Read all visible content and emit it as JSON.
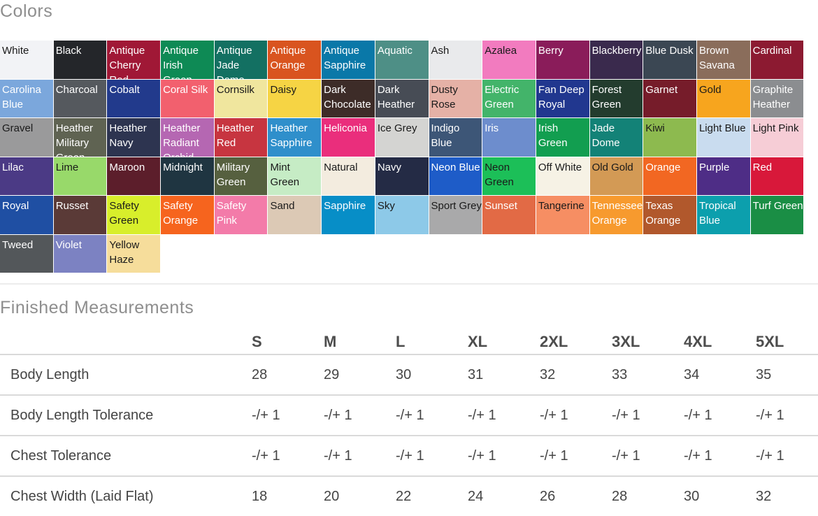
{
  "colors_section": {
    "title": "Colors",
    "swatches": [
      {
        "name": "White",
        "color": "#f2f3f6",
        "text": "#1a1a1a"
      },
      {
        "name": "Black",
        "color": "#24262a",
        "text": "#ffffff"
      },
      {
        "name": "Antique Cherry Red",
        "color": "#a01836",
        "text": "#ffffff"
      },
      {
        "name": "Antique Irish Green",
        "color": "#0e8a55",
        "text": "#ffffff"
      },
      {
        "name": "Antique Jade Dome",
        "color": "#137062",
        "text": "#ffffff"
      },
      {
        "name": "Antique Orange",
        "color": "#d9541f",
        "text": "#ffffff"
      },
      {
        "name": "Antique Sapphire",
        "color": "#0a78a8",
        "text": "#ffffff"
      },
      {
        "name": "Aquatic",
        "color": "#4e8f86",
        "text": "#ffffff"
      },
      {
        "name": "Ash",
        "color": "#e9eaec",
        "text": "#1a1a1a"
      },
      {
        "name": "Azalea",
        "color": "#f27bbf",
        "text": "#1a1a1a"
      },
      {
        "name": "Berry",
        "color": "#8a1c5a",
        "text": "#ffffff"
      },
      {
        "name": "Blackberry",
        "color": "#3a2a4d",
        "text": "#ffffff"
      },
      {
        "name": "Blue Dusk",
        "color": "#3b4753",
        "text": "#ffffff"
      },
      {
        "name": "Brown Savana",
        "color": "#8a6d5b",
        "text": "#ffffff"
      },
      {
        "name": "Cardinal",
        "color": "#8c1a31",
        "text": "#ffffff"
      },
      {
        "name": "Carolina Blue",
        "color": "#7ba7dc",
        "text": "#ffffff"
      },
      {
        "name": "Charcoal",
        "color": "#55595e",
        "text": "#ffffff"
      },
      {
        "name": "Cobalt",
        "color": "#223a8c",
        "text": "#ffffff"
      },
      {
        "name": "Coral Silk",
        "color": "#f2606e",
        "text": "#ffffff"
      },
      {
        "name": "Cornsilk",
        "color": "#f0e69e",
        "text": "#1a1a1a"
      },
      {
        "name": "Daisy",
        "color": "#f6d444",
        "text": "#1a1a1a"
      },
      {
        "name": "Dark Chocolate",
        "color": "#3d2c28",
        "text": "#ffffff"
      },
      {
        "name": "Dark Heather",
        "color": "#474c55",
        "text": "#ffffff"
      },
      {
        "name": "Dusty Rose",
        "color": "#e5b1a6",
        "text": "#1a1a1a"
      },
      {
        "name": "Electric Green",
        "color": "#43b46a",
        "text": "#ffffff"
      },
      {
        "name": "Fan Deep Royal",
        "color": "#21378f",
        "text": "#ffffff"
      },
      {
        "name": "Forest Green",
        "color": "#233c2e",
        "text": "#ffffff"
      },
      {
        "name": "Garnet",
        "color": "#761c2a",
        "text": "#ffffff"
      },
      {
        "name": "Gold",
        "color": "#f7a51e",
        "text": "#1a1a1a"
      },
      {
        "name": "Graphite Heather",
        "color": "#8b8d90",
        "text": "#ffffff"
      },
      {
        "name": "Gravel",
        "color": "#9a9a9b",
        "text": "#1a1a1a"
      },
      {
        "name": "Heather Military Green",
        "color": "#5f6352",
        "text": "#ffffff"
      },
      {
        "name": "Heather Navy",
        "color": "#2d3450",
        "text": "#ffffff"
      },
      {
        "name": "Heather Radiant Orchid",
        "color": "#b567b2",
        "text": "#ffffff"
      },
      {
        "name": "Heather Red",
        "color": "#c73540",
        "text": "#ffffff"
      },
      {
        "name": "Heather Sapphire",
        "color": "#2f8fcb",
        "text": "#ffffff"
      },
      {
        "name": "Heliconia",
        "color": "#ea2e7c",
        "text": "#ffffff"
      },
      {
        "name": "Ice Grey",
        "color": "#d4d4d2",
        "text": "#1a1a1a"
      },
      {
        "name": "Indigo Blue",
        "color": "#3d5677",
        "text": "#ffffff"
      },
      {
        "name": "Iris",
        "color": "#6d8dcd",
        "text": "#ffffff"
      },
      {
        "name": "Irish Green",
        "color": "#129e50",
        "text": "#ffffff"
      },
      {
        "name": "Jade Dome",
        "color": "#138277",
        "text": "#ffffff"
      },
      {
        "name": "Kiwi",
        "color": "#8dba4f",
        "text": "#1a1a1a"
      },
      {
        "name": "Light Blue",
        "color": "#c9dcef",
        "text": "#1a1a1a"
      },
      {
        "name": "Light Pink",
        "color": "#f6cdd6",
        "text": "#1a1a1a"
      },
      {
        "name": "Lilac",
        "color": "#4b3a85",
        "text": "#ffffff"
      },
      {
        "name": "Lime",
        "color": "#98d96a",
        "text": "#1a1a1a"
      },
      {
        "name": "Maroon",
        "color": "#5c1e2b",
        "text": "#ffffff"
      },
      {
        "name": "Midnight",
        "color": "#1f3541",
        "text": "#ffffff"
      },
      {
        "name": "Military Green",
        "color": "#56603f",
        "text": "#ffffff"
      },
      {
        "name": "Mint Green",
        "color": "#c6ecc5",
        "text": "#1a1a1a"
      },
      {
        "name": "Natural",
        "color": "#f3ecdf",
        "text": "#1a1a1a"
      },
      {
        "name": "Navy",
        "color": "#242b45",
        "text": "#ffffff"
      },
      {
        "name": "Neon Blue",
        "color": "#1e5cc8",
        "text": "#ffffff"
      },
      {
        "name": "Neon Green",
        "color": "#1cbf58",
        "text": "#1a1a1a"
      },
      {
        "name": "Off White",
        "color": "#f6f2e5",
        "text": "#1a1a1a"
      },
      {
        "name": "Old Gold",
        "color": "#d39a55",
        "text": "#1a1a1a"
      },
      {
        "name": "Orange",
        "color": "#f26722",
        "text": "#ffffff"
      },
      {
        "name": "Purple",
        "color": "#4e2d86",
        "text": "#ffffff"
      },
      {
        "name": "Red",
        "color": "#d8183a",
        "text": "#ffffff"
      },
      {
        "name": "Royal",
        "color": "#1f4fa3",
        "text": "#ffffff"
      },
      {
        "name": "Russet",
        "color": "#5a3a37",
        "text": "#ffffff"
      },
      {
        "name": "Safety Green",
        "color": "#d8ee2b",
        "text": "#1a1a1a"
      },
      {
        "name": "Safety Orange",
        "color": "#f6641e",
        "text": "#ffffff"
      },
      {
        "name": "Safety Pink",
        "color": "#f37ba9",
        "text": "#ffffff"
      },
      {
        "name": "Sand",
        "color": "#dcc9b5",
        "text": "#1a1a1a"
      },
      {
        "name": "Sapphire",
        "color": "#078ec7",
        "text": "#ffffff"
      },
      {
        "name": "Sky",
        "color": "#8dc9e8",
        "text": "#1a1a1a"
      },
      {
        "name": "Sport Grey",
        "color": "#a9a9aa",
        "text": "#1a1a1a"
      },
      {
        "name": "Sunset",
        "color": "#e26a45",
        "text": "#ffffff"
      },
      {
        "name": "Tangerine",
        "color": "#f68e63",
        "text": "#1a1a1a"
      },
      {
        "name": "Tennessee Orange",
        "color": "#f79a2e",
        "text": "#ffffff"
      },
      {
        "name": "Texas Orange",
        "color": "#b1582c",
        "text": "#ffffff"
      },
      {
        "name": "Tropical Blue",
        "color": "#0c9fad",
        "text": "#ffffff"
      },
      {
        "name": "Turf Green",
        "color": "#1a8e45",
        "text": "#ffffff"
      },
      {
        "name": "Tweed",
        "color": "#53575a",
        "text": "#ffffff"
      },
      {
        "name": "Violet",
        "color": "#7c82c2",
        "text": "#ffffff"
      },
      {
        "name": "Yellow Haze",
        "color": "#f6dd9b",
        "text": "#1a1a1a"
      }
    ]
  },
  "measurements_section": {
    "title": "Finished Measurements",
    "sizes": [
      "S",
      "M",
      "L",
      "XL",
      "2XL",
      "3XL",
      "4XL",
      "5XL"
    ],
    "rows": [
      {
        "label": "Body Length",
        "values": [
          "28",
          "29",
          "30",
          "31",
          "32",
          "33",
          "34",
          "35"
        ]
      },
      {
        "label": "Body Length Tolerance",
        "values": [
          "-/+ 1",
          "-/+ 1",
          "-/+ 1",
          "-/+ 1",
          "-/+ 1",
          "-/+ 1",
          "-/+ 1",
          "-/+ 1"
        ]
      },
      {
        "label": "Chest Tolerance",
        "values": [
          "-/+ 1",
          "-/+ 1",
          "-/+ 1",
          "-/+ 1",
          "-/+ 1",
          "-/+ 1",
          "-/+ 1",
          "-/+ 1"
        ]
      },
      {
        "label": "Chest Width (Laid Flat)",
        "values": [
          "18",
          "20",
          "22",
          "24",
          "26",
          "28",
          "30",
          "32"
        ]
      }
    ]
  }
}
